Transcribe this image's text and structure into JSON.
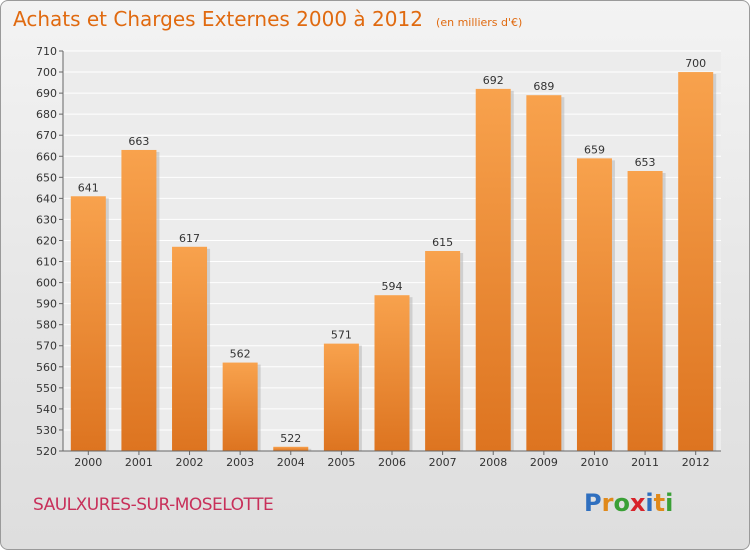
{
  "header": {
    "title": "Achats et Charges Externes 2000 à 2012",
    "subtitle": "(en milliers d'€)"
  },
  "footer": {
    "commune": "SAULXURES-SUR-MOSELOTTE",
    "logo_letters": [
      {
        "char": "P",
        "color": "#2f6fbf"
      },
      {
        "char": "r",
        "color": "#e0891a"
      },
      {
        "char": "o",
        "color": "#3aa036"
      },
      {
        "char": "x",
        "color": "#d8232a"
      },
      {
        "char": "i",
        "color": "#2f6fbf"
      },
      {
        "char": "t",
        "color": "#e0891a"
      },
      {
        "char": "i",
        "color": "#3aa036"
      }
    ]
  },
  "colors": {
    "bar_top": "#f8a24d",
    "bar_bottom": "#dd7420",
    "accent": "#e06a10"
  },
  "chart_data": {
    "type": "bar",
    "categories": [
      "2000",
      "2001",
      "2002",
      "2003",
      "2004",
      "2005",
      "2006",
      "2007",
      "2008",
      "2009",
      "2010",
      "2011",
      "2012"
    ],
    "values": [
      641,
      663,
      617,
      562,
      522,
      571,
      594,
      615,
      692,
      689,
      659,
      653,
      700
    ],
    "title": "Achats et Charges Externes 2000 à 2012",
    "ylim": [
      520,
      710
    ],
    "yticks": [
      520,
      530,
      540,
      550,
      560,
      570,
      580,
      590,
      600,
      610,
      620,
      630,
      640,
      650,
      660,
      670,
      680,
      690,
      700,
      710
    ],
    "grid": true,
    "data_labels": true
  }
}
